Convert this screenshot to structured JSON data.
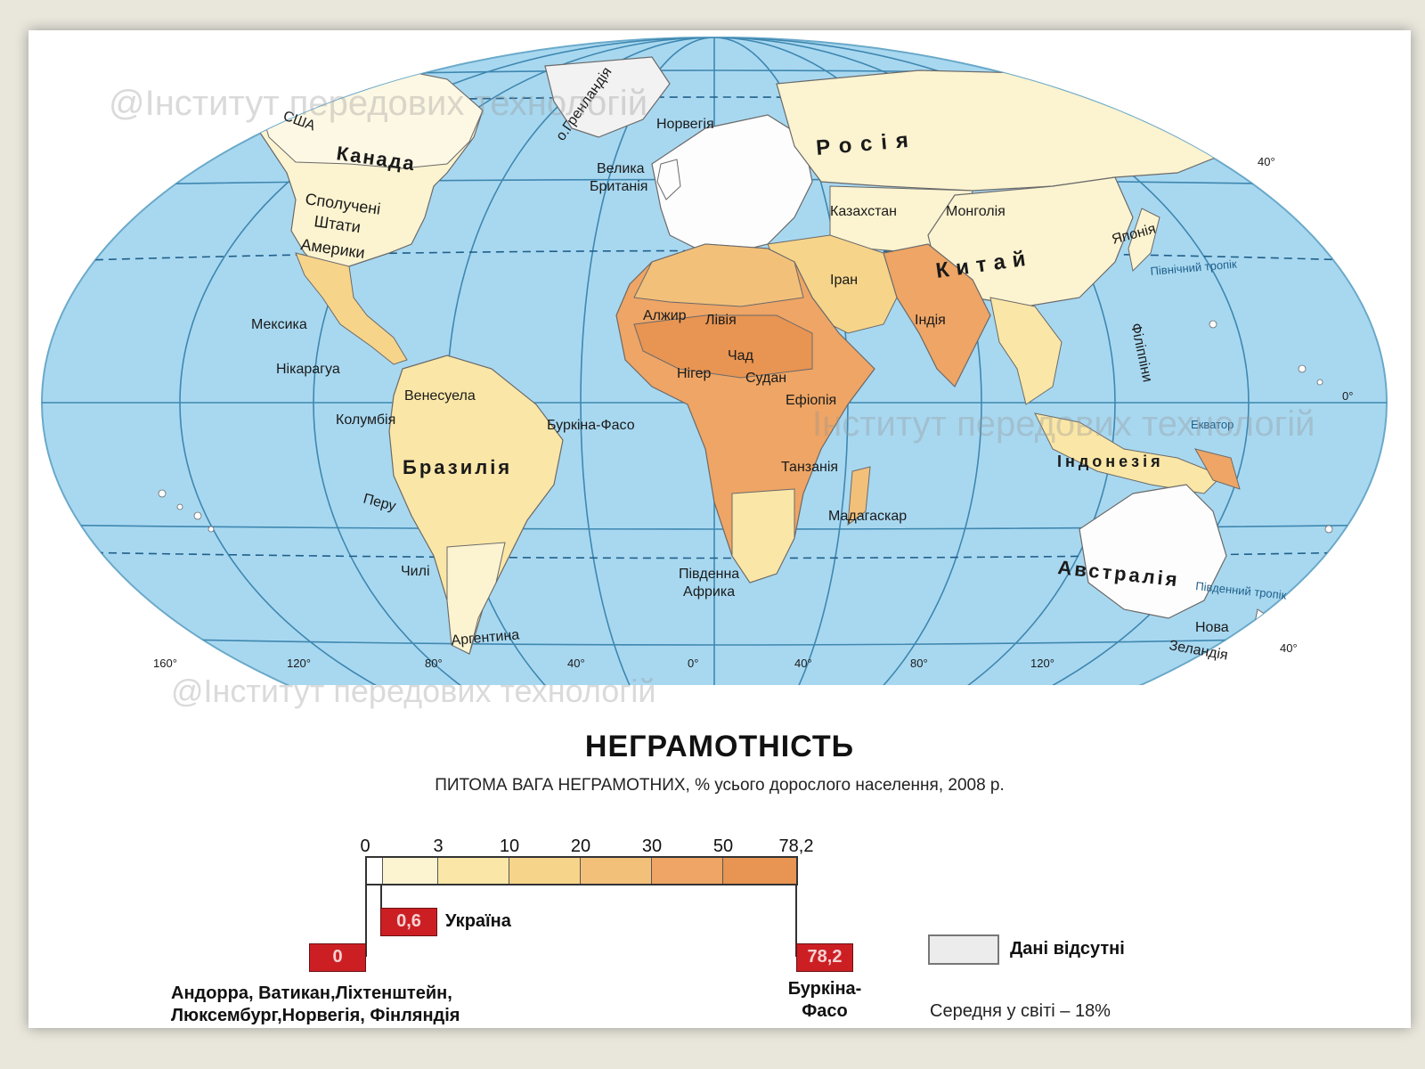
{
  "map": {
    "labels": {
      "usa_short": "США",
      "canada": "Канада",
      "greenland": "о.Гренландія",
      "norway": "Норвегія",
      "great_britain_1": "Велика",
      "great_britain_2": "Британія",
      "russia": "Росія",
      "kazakhstan": "Казахстан",
      "mongolia": "Монголія",
      "usa_1": "Сполучені",
      "usa_2": "Штати",
      "usa_3": "Америки",
      "china": "Китай",
      "japan": "Японія",
      "iran": "Іран",
      "tropic_north": "Північний тропік",
      "mexico": "Мексика",
      "algeria": "Алжир",
      "libya": "Лівія",
      "india": "Індія",
      "chad": "Чад",
      "niger": "Нігер",
      "sudan": "Судан",
      "nicaragua": "Нікарагуа",
      "philippines": "Філіппіни",
      "venezuela": "Венесуела",
      "ethiopia": "Ефіопія",
      "colombia": "Колумбія",
      "burkina": "Буркіна-Фасо",
      "equator": "Екватор",
      "brazil": "Бразилія",
      "tanzania": "Танзанія",
      "indonesia": "Індонезія",
      "peru": "Перу",
      "madagascar": "Мадагаскар",
      "chile": "Чилі",
      "south_africa_1": "Південна",
      "south_africa_2": "Африка",
      "australia": "Австралія",
      "tropic_south": "Південний тропік",
      "argentina": "Аргентина",
      "new_zealand_1": "Нова",
      "new_zealand_2": "Зеландія"
    },
    "grid_labels": {
      "lat_40n": "40°",
      "lat_0": "0°",
      "lat_40s": "40°",
      "lon_160w": "160°",
      "lon_120w": "120°",
      "lon_80w": "80°",
      "lon_40w": "40°",
      "lon_0": "0°",
      "lon_40e": "40°",
      "lon_80e": "80°",
      "lon_120e": "120°"
    },
    "watermarks": [
      "@Інститут передових технологій",
      "Інститут передових технологій",
      "@Інститут передових технологій"
    ],
    "colors": {
      "ocean": "#a8d8f0",
      "no_data": "#f2f2f2",
      "class_0_3": "#fcf3d0",
      "class_3_10": "#fae6a6",
      "class_10_20": "#f6d48a",
      "class_20_30": "#f3c07a",
      "class_30_50": "#eea565",
      "class_50_78": "#e89452"
    }
  },
  "legend": {
    "title": "НЕГРАМОТНІСТЬ",
    "subtitle": "ПИТОМА ВАГА НЕГРАМОТНИХ, % усього дорослого населення, 2008 р.",
    "ticks": [
      "0",
      "3",
      "10",
      "20",
      "30",
      "50",
      "78,2"
    ],
    "scale_colors": [
      "#fcf3d0",
      "#fae6a6",
      "#f6d48a",
      "#f3c07a",
      "#eea565",
      "#e89452"
    ],
    "min_box": "0",
    "min_countries_1": "Андорра, Ватикан,Ліхтенштейн,",
    "min_countries_2": "Люксембург,Норвегія, Фінляндія",
    "ukraine_box": "0,6",
    "ukraine_label": "Україна",
    "max_box": "78,2",
    "max_country_1": "Буркіна-",
    "max_country_2": "Фасо",
    "no_data_label": "Дані відсутні",
    "world_average": "Середня у світі – 18%"
  }
}
